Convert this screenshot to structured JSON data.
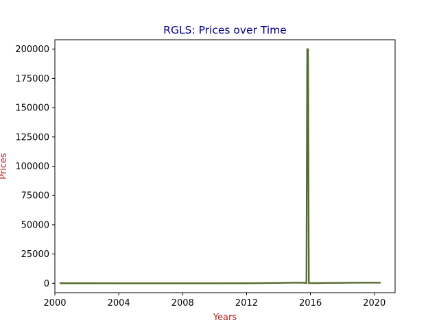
{
  "chart_data": {
    "type": "line",
    "title": "RGLS: Prices over Time",
    "xlabel": "Years",
    "ylabel": "Prices",
    "xlim": [
      2000,
      2021.3
    ],
    "ylim": [
      -8000,
      208000
    ],
    "x_ticks": [
      2000,
      2004,
      2008,
      2012,
      2016,
      2020
    ],
    "y_ticks": [
      0,
      25000,
      50000,
      75000,
      100000,
      125000,
      150000,
      175000,
      200000
    ],
    "grid": false,
    "legend": "none",
    "colors": {
      "line": "#556b2f",
      "title": "#00008b",
      "axis_label": "#b22222"
    },
    "series": [
      {
        "x": [
          2000.3,
          2002,
          2004,
          2006,
          2008,
          2010,
          2012,
          2013,
          2014,
          2015,
          2015.6,
          2015.75,
          2015.8,
          2015.85,
          2015.9,
          2016.5,
          2017,
          2018,
          2019,
          2020,
          2020.4
        ],
        "y": [
          50,
          40,
          30,
          30,
          30,
          30,
          40,
          150,
          300,
          500,
          450,
          150,
          200000,
          200000,
          150,
          200,
          300,
          400,
          500,
          550,
          550
        ]
      }
    ]
  }
}
